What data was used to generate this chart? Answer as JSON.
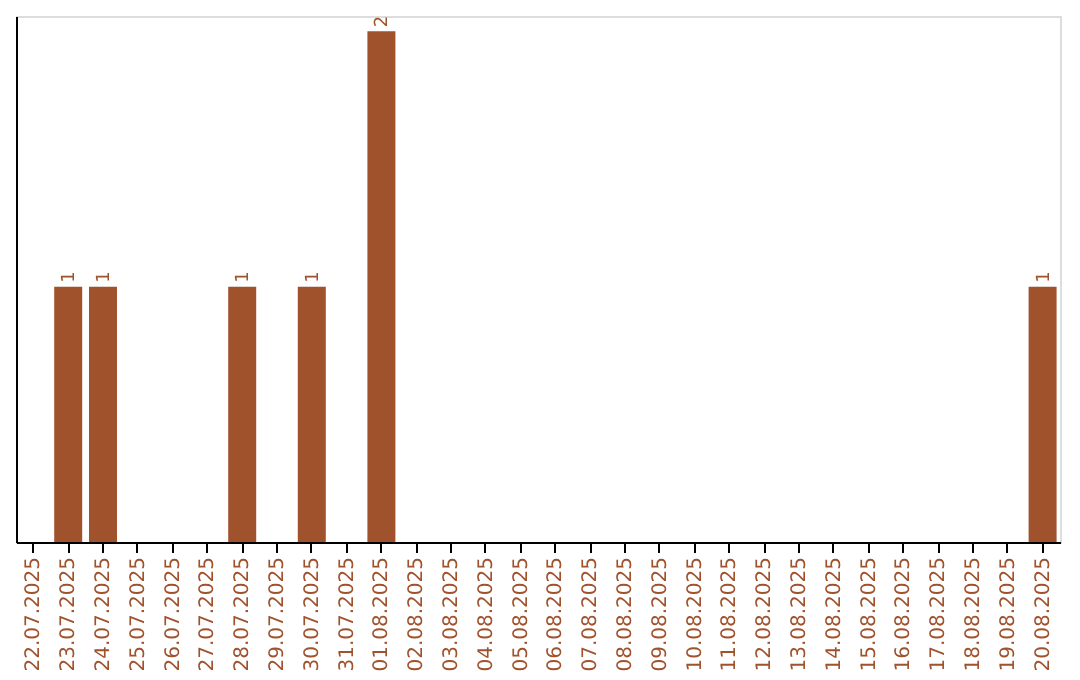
{
  "chart_data": {
    "type": "bar",
    "categories": [
      "22.07.2025",
      "23.07.2025",
      "24.07.2025",
      "25.07.2025",
      "26.07.2025",
      "27.07.2025",
      "28.07.2025",
      "29.07.2025",
      "30.07.2025",
      "31.07.2025",
      "01.08.2025",
      "02.08.2025",
      "03.08.2025",
      "04.08.2025",
      "05.08.2025",
      "06.08.2025",
      "07.08.2025",
      "08.08.2025",
      "09.08.2025",
      "10.08.2025",
      "11.08.2025",
      "12.08.2025",
      "13.08.2025",
      "14.08.2025",
      "15.08.2025",
      "16.08.2025",
      "17.08.2025",
      "18.08.2025",
      "19.08.2025",
      "20.08.2025"
    ],
    "values": [
      0,
      1,
      1,
      0,
      0,
      0,
      1,
      0,
      1,
      0,
      2,
      0,
      0,
      0,
      0,
      0,
      0,
      0,
      0,
      0,
      0,
      0,
      0,
      0,
      0,
      0,
      0,
      0,
      0,
      1
    ],
    "value_labels": [
      null,
      "1",
      "1",
      null,
      null,
      null,
      "1",
      null,
      "1",
      null,
      "2",
      null,
      null,
      null,
      null,
      null,
      null,
      null,
      null,
      null,
      null,
      null,
      null,
      null,
      null,
      null,
      null,
      null,
      null,
      "1"
    ],
    "color": "#a0522d",
    "grid": false,
    "tick_labels": "x"
  }
}
